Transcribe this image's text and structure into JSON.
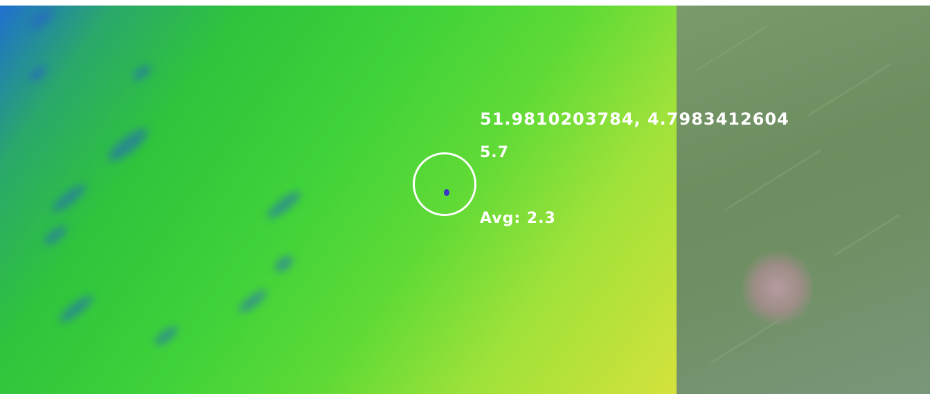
{
  "overlay": {
    "coordinates": "51.9810203784, 4.7983412604",
    "point_value": "5.7",
    "average": "Avg: 2.3"
  },
  "colors": {
    "heatmap_low": "#1f6fd0",
    "heatmap_mid": "#3fd23a",
    "heatmap_high": "#d5e23c",
    "marker": "#ffffff",
    "photo_tone": "#6d8e60"
  },
  "icons": {
    "marker": "target-circle-icon"
  }
}
